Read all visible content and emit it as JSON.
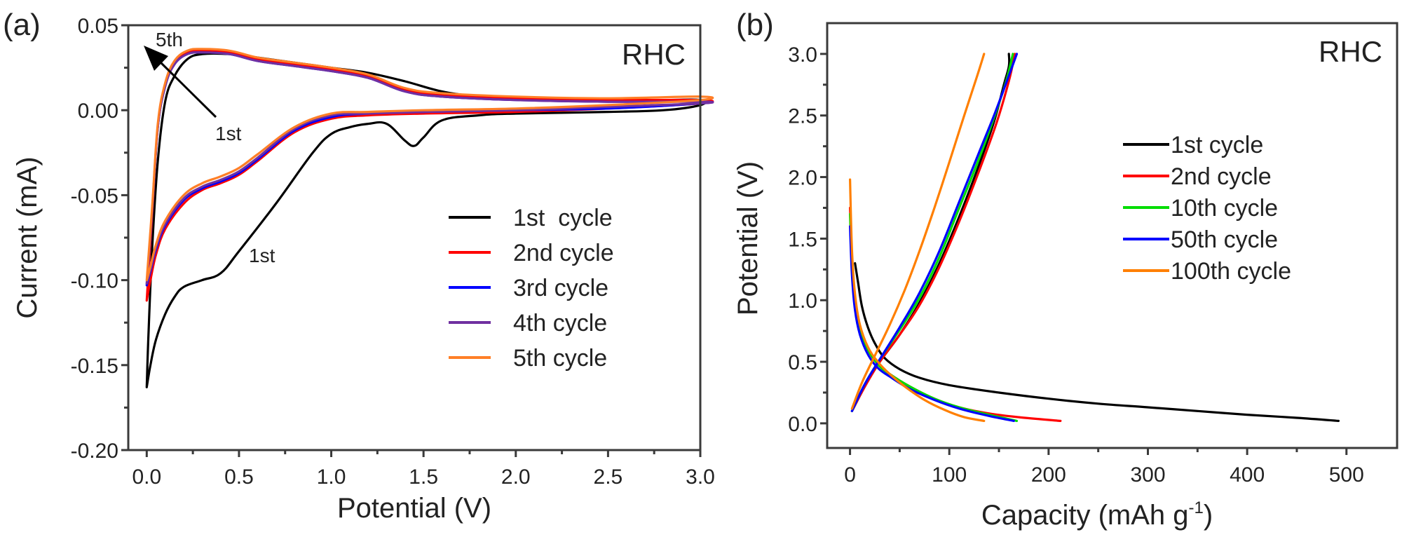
{
  "chart_data": [
    {
      "panel_label": "(a)",
      "type": "line",
      "title": "",
      "annotation": "RHC",
      "xlabel": "Potential (V)",
      "ylabel": "Current (mA)",
      "xlim": [
        -0.1,
        3.0
      ],
      "ylim": [
        -0.2,
        0.05
      ],
      "xticks": [
        "0.0",
        "0.5",
        "1.0",
        "1.5",
        "2.0",
        "2.5",
        "3.0"
      ],
      "xtick_values": [
        0,
        0.5,
        1.0,
        1.5,
        2.0,
        2.5,
        3.0
      ],
      "yticks": [
        "0.05",
        "0.00",
        "-0.05",
        "-0.10",
        "-0.15",
        "-0.20"
      ],
      "ytick_values": [
        0.05,
        0.0,
        -0.05,
        -0.1,
        -0.15,
        -0.2
      ],
      "grid": false,
      "legend": "right",
      "arrow_annotation": {
        "from_label": "1st",
        "to_label": "5th"
      },
      "curve_label": "1st",
      "series": [
        {
          "name": "1st  cycle",
          "color": "#000000",
          "x": [
            0.0,
            0.02,
            0.05,
            0.1,
            0.15,
            0.2,
            0.3,
            0.4,
            0.5,
            0.7,
            0.9,
            1.0,
            1.1,
            1.2,
            1.3,
            1.4,
            1.45,
            1.5,
            1.6,
            1.8,
            2.0,
            2.5,
            2.8,
            3.0,
            3.0,
            2.8,
            2.5,
            2.0,
            1.8,
            1.6,
            1.4,
            1.2,
            1.0,
            0.8,
            0.6,
            0.45,
            0.3,
            0.22,
            0.15,
            0.1,
            0.06,
            0.03,
            0.01,
            0.0
          ],
          "y": [
            -0.163,
            -0.15,
            -0.135,
            -0.12,
            -0.11,
            -0.104,
            -0.1,
            -0.096,
            -0.083,
            -0.055,
            -0.025,
            -0.014,
            -0.01,
            -0.008,
            -0.008,
            -0.018,
            -0.021,
            -0.016,
            -0.006,
            -0.003,
            -0.002,
            -0.001,
            0.0,
            0.003,
            0.006,
            0.006,
            0.006,
            0.007,
            0.008,
            0.011,
            0.017,
            0.022,
            0.025,
            0.028,
            0.031,
            0.033,
            0.033,
            0.03,
            0.02,
            0.005,
            -0.03,
            -0.08,
            -0.13,
            -0.163
          ]
        },
        {
          "name": "2nd cycle",
          "color": "#ff0000",
          "x": [
            0.0,
            0.02,
            0.05,
            0.1,
            0.2,
            0.3,
            0.4,
            0.5,
            0.6,
            0.8,
            1.0,
            1.2,
            1.5,
            2.0,
            2.5,
            3.0,
            3.0,
            2.5,
            2.0,
            1.6,
            1.4,
            1.2,
            1.0,
            0.8,
            0.6,
            0.45,
            0.3,
            0.22,
            0.15,
            0.1,
            0.06,
            0.03,
            0.0
          ],
          "y": [
            -0.112,
            -0.1,
            -0.085,
            -0.07,
            -0.055,
            -0.047,
            -0.043,
            -0.038,
            -0.03,
            -0.013,
            -0.005,
            -0.003,
            -0.002,
            -0.001,
            0.001,
            0.004,
            0.006,
            0.006,
            0.007,
            0.009,
            0.012,
            0.02,
            0.024,
            0.027,
            0.03,
            0.034,
            0.035,
            0.034,
            0.028,
            0.015,
            -0.01,
            -0.06,
            -0.112
          ]
        },
        {
          "name": "3rd cycle",
          "color": "#0000ff",
          "x": [
            0.0,
            0.02,
            0.05,
            0.1,
            0.2,
            0.3,
            0.4,
            0.5,
            0.6,
            0.8,
            1.0,
            1.2,
            1.5,
            2.0,
            2.5,
            3.0,
            3.0,
            2.5,
            2.0,
            1.6,
            1.4,
            1.2,
            1.0,
            0.8,
            0.6,
            0.45,
            0.3,
            0.22,
            0.15,
            0.1,
            0.06,
            0.03,
            0.0
          ],
          "y": [
            -0.103,
            -0.095,
            -0.082,
            -0.068,
            -0.053,
            -0.046,
            -0.042,
            -0.037,
            -0.029,
            -0.012,
            -0.004,
            -0.002,
            -0.001,
            0.0,
            0.001,
            0.004,
            0.005,
            0.005,
            0.006,
            0.008,
            0.011,
            0.019,
            0.023,
            0.026,
            0.029,
            0.033,
            0.034,
            0.033,
            0.027,
            0.014,
            -0.01,
            -0.058,
            -0.103
          ]
        },
        {
          "name": "4th cycle",
          "color": "#7030a0",
          "x": [
            0.0,
            0.02,
            0.05,
            0.1,
            0.2,
            0.3,
            0.4,
            0.5,
            0.6,
            0.8,
            1.0,
            1.2,
            1.5,
            2.0,
            2.5,
            3.0,
            3.0,
            2.5,
            2.0,
            1.6,
            1.4,
            1.2,
            1.0,
            0.8,
            0.6,
            0.45,
            0.3,
            0.22,
            0.15,
            0.1,
            0.06,
            0.03,
            0.0
          ],
          "y": [
            -0.102,
            -0.094,
            -0.081,
            -0.067,
            -0.052,
            -0.045,
            -0.041,
            -0.036,
            -0.028,
            -0.011,
            -0.003,
            -0.002,
            -0.001,
            0.0,
            0.002,
            0.004,
            0.005,
            0.005,
            0.006,
            0.008,
            0.011,
            0.019,
            0.023,
            0.026,
            0.029,
            0.033,
            0.034,
            0.033,
            0.027,
            0.014,
            -0.01,
            -0.058,
            -0.102
          ]
        },
        {
          "name": "5th cycle",
          "color": "#ff7f27",
          "x": [
            0.0,
            0.02,
            0.05,
            0.1,
            0.2,
            0.3,
            0.4,
            0.5,
            0.6,
            0.8,
            1.0,
            1.2,
            1.5,
            2.0,
            2.5,
            3.0,
            3.0,
            2.5,
            2.0,
            1.6,
            1.4,
            1.2,
            1.0,
            0.8,
            0.6,
            0.45,
            0.3,
            0.22,
            0.15,
            0.1,
            0.06,
            0.03,
            0.0
          ],
          "y": [
            -0.1,
            -0.092,
            -0.079,
            -0.065,
            -0.05,
            -0.043,
            -0.039,
            -0.034,
            -0.026,
            -0.01,
            -0.002,
            -0.001,
            0.0,
            0.001,
            0.003,
            0.006,
            0.008,
            0.007,
            0.008,
            0.01,
            0.013,
            0.021,
            0.025,
            0.028,
            0.031,
            0.035,
            0.036,
            0.035,
            0.029,
            0.016,
            -0.008,
            -0.056,
            -0.1
          ]
        }
      ]
    },
    {
      "panel_label": "(b)",
      "type": "line",
      "title": "",
      "annotation": "RHC",
      "xlabel": "Capacity (mAh g",
      "xlabel_sup": "-1",
      "xlabel_end": ")",
      "ylabel": "Potential (V)",
      "xlim": [
        -23,
        551
      ],
      "ylim": [
        -0.2,
        3.25
      ],
      "xticks": [
        "0",
        "100",
        "200",
        "300",
        "400",
        "500"
      ],
      "xtick_values": [
        0,
        100,
        200,
        300,
        400,
        500
      ],
      "yticks": [
        "0.0",
        "0.5",
        "1.0",
        "1.5",
        "2.0",
        "2.5",
        "3.0"
      ],
      "ytick_values": [
        0,
        0.5,
        1.0,
        1.5,
        2.0,
        2.5,
        3.0
      ],
      "grid": false,
      "legend": "right",
      "series": [
        {
          "name": "1st cycle",
          "color": "#000000",
          "discharge": {
            "x": [
              5,
              8,
              12,
              18,
              25,
              35,
              50,
              70,
              100,
              150,
              200,
              250,
              300,
              350,
              400,
              450,
              492
            ],
            "y": [
              1.3,
              1.15,
              0.95,
              0.78,
              0.65,
              0.53,
              0.44,
              0.37,
              0.31,
              0.25,
              0.2,
              0.16,
              0.13,
              0.1,
              0.07,
              0.045,
              0.02
            ]
          },
          "charge": {
            "x": [
              2,
              15,
              30,
              50,
              70,
              90,
              110,
              130,
              145,
              155,
              160,
              160
            ],
            "y": [
              0.1,
              0.3,
              0.5,
              0.72,
              0.98,
              1.3,
              1.68,
              2.1,
              2.45,
              2.75,
              2.9,
              3.0
            ]
          }
        },
        {
          "name": "2nd cycle",
          "color": "#ff0000",
          "discharge": {
            "x": [
              0,
              2,
              5,
              10,
              18,
              28,
              40,
              60,
              85,
              110,
              140,
              170,
              212
            ],
            "y": [
              1.75,
              1.3,
              1.0,
              0.78,
              0.6,
              0.48,
              0.4,
              0.3,
              0.2,
              0.13,
              0.08,
              0.05,
              0.02
            ]
          },
          "charge": {
            "x": [
              2,
              15,
              30,
              50,
              70,
              90,
              110,
              130,
              148,
              160,
              166
            ],
            "y": [
              0.1,
              0.3,
              0.5,
              0.72,
              0.96,
              1.27,
              1.64,
              2.05,
              2.45,
              2.78,
              3.0
            ]
          }
        },
        {
          "name": "10th cycle",
          "color": "#00dd00",
          "discharge": {
            "x": [
              0,
              2,
              5,
              10,
              18,
              28,
              40,
              60,
              85,
              110,
              140,
              168
            ],
            "y": [
              1.7,
              1.25,
              0.98,
              0.76,
              0.6,
              0.48,
              0.4,
              0.3,
              0.2,
              0.13,
              0.07,
              0.02
            ]
          },
          "charge": {
            "x": [
              2,
              15,
              30,
              50,
              70,
              90,
              110,
              130,
              148,
              158,
              164
            ],
            "y": [
              0.1,
              0.32,
              0.52,
              0.76,
              1.02,
              1.35,
              1.75,
              2.15,
              2.55,
              2.8,
              3.0
            ]
          }
        },
        {
          "name": "50th cycle",
          "color": "#0000ff",
          "discharge": {
            "x": [
              0,
              2,
              5,
              10,
              18,
              28,
              40,
              60,
              85,
              110,
              140,
              165
            ],
            "y": [
              1.6,
              1.2,
              0.92,
              0.72,
              0.56,
              0.45,
              0.38,
              0.28,
              0.19,
              0.12,
              0.06,
              0.02
            ]
          },
          "charge": {
            "x": [
              2,
              15,
              30,
              50,
              70,
              90,
              110,
              130,
              145,
              158,
              168
            ],
            "y": [
              0.1,
              0.32,
              0.52,
              0.78,
              1.06,
              1.4,
              1.8,
              2.2,
              2.5,
              2.78,
              3.0
            ]
          }
        },
        {
          "name": "100th cycle",
          "color": "#ff7f00",
          "discharge": {
            "x": [
              0,
              2,
              5,
              10,
              18,
              28,
              40,
              55,
              75,
              95,
              115,
              135
            ],
            "y": [
              1.98,
              1.4,
              1.05,
              0.8,
              0.62,
              0.5,
              0.4,
              0.3,
              0.19,
              0.11,
              0.05,
              0.02
            ]
          },
          "charge": {
            "x": [
              2,
              12,
              25,
              40,
              55,
              70,
              85,
              100,
              115,
              128,
              135
            ],
            "y": [
              0.12,
              0.33,
              0.55,
              0.8,
              1.08,
              1.4,
              1.75,
              2.12,
              2.5,
              2.82,
              3.0
            ]
          }
        }
      ]
    }
  ]
}
